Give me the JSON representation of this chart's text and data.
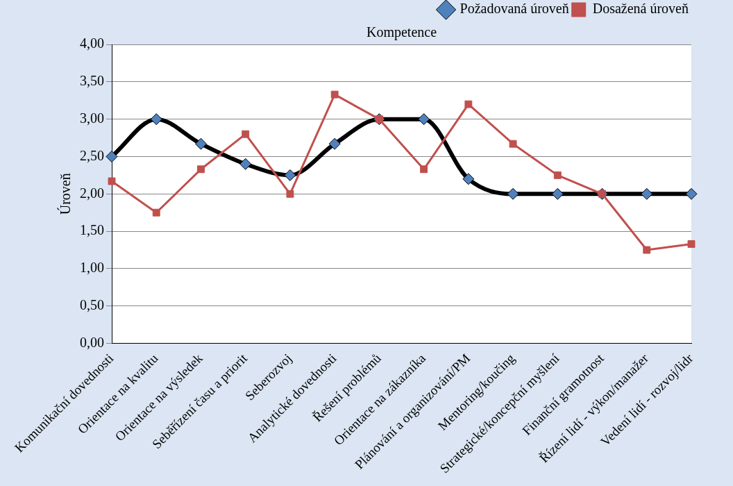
{
  "chart_data": {
    "type": "line",
    "title": "Kompetence",
    "ylabel": "Úroveň",
    "categories": [
      "Komunikační dovednosti",
      "Orientace na kvalitu",
      "Orientace na výsledek",
      "Seběřízení času a priorit",
      "Seberozvoj",
      "Analytické dovednosti",
      "Řešení problémů",
      "Orientace na zákazníka",
      "Plánování a organizování/PM",
      "Mentoring/koučing",
      "Strategické/koncepční myšlení",
      "Finanční gramotnost",
      "Řízení lidí - výkon/manažer",
      "Vedení lidí - rozvoj/lidr"
    ],
    "series": [
      {
        "name": "Požadovaná úroveň",
        "color": "#000000",
        "marker": "diamond",
        "values": [
          2.5,
          3.0,
          2.67,
          2.4,
          2.25,
          2.67,
          3.0,
          3.0,
          2.2,
          2.0,
          2.0,
          2.0,
          2.0,
          2.0
        ]
      },
      {
        "name": "Dosažená úroveň",
        "color": "#c0504d",
        "marker": "square",
        "values": [
          2.17,
          1.75,
          2.33,
          2.8,
          2.0,
          3.33,
          3.0,
          2.33,
          3.2,
          2.67,
          2.25,
          2.0,
          1.25,
          1.33
        ]
      }
    ],
    "ylim": [
      0,
      4
    ],
    "yticks": [
      {
        "value": 0,
        "label": "0,00"
      },
      {
        "value": 0.5,
        "label": "0,50"
      },
      {
        "value": 1,
        "label": "1,00"
      },
      {
        "value": 1.5,
        "label": "1,50"
      },
      {
        "value": 2,
        "label": "2,00"
      },
      {
        "value": 2.5,
        "label": "2,50"
      },
      {
        "value": 3,
        "label": "3,00"
      },
      {
        "value": 3.5,
        "label": "3,50"
      },
      {
        "value": 4,
        "label": "4,00"
      }
    ],
    "grid": "y",
    "legend": "top right",
    "line_style": "solid"
  }
}
